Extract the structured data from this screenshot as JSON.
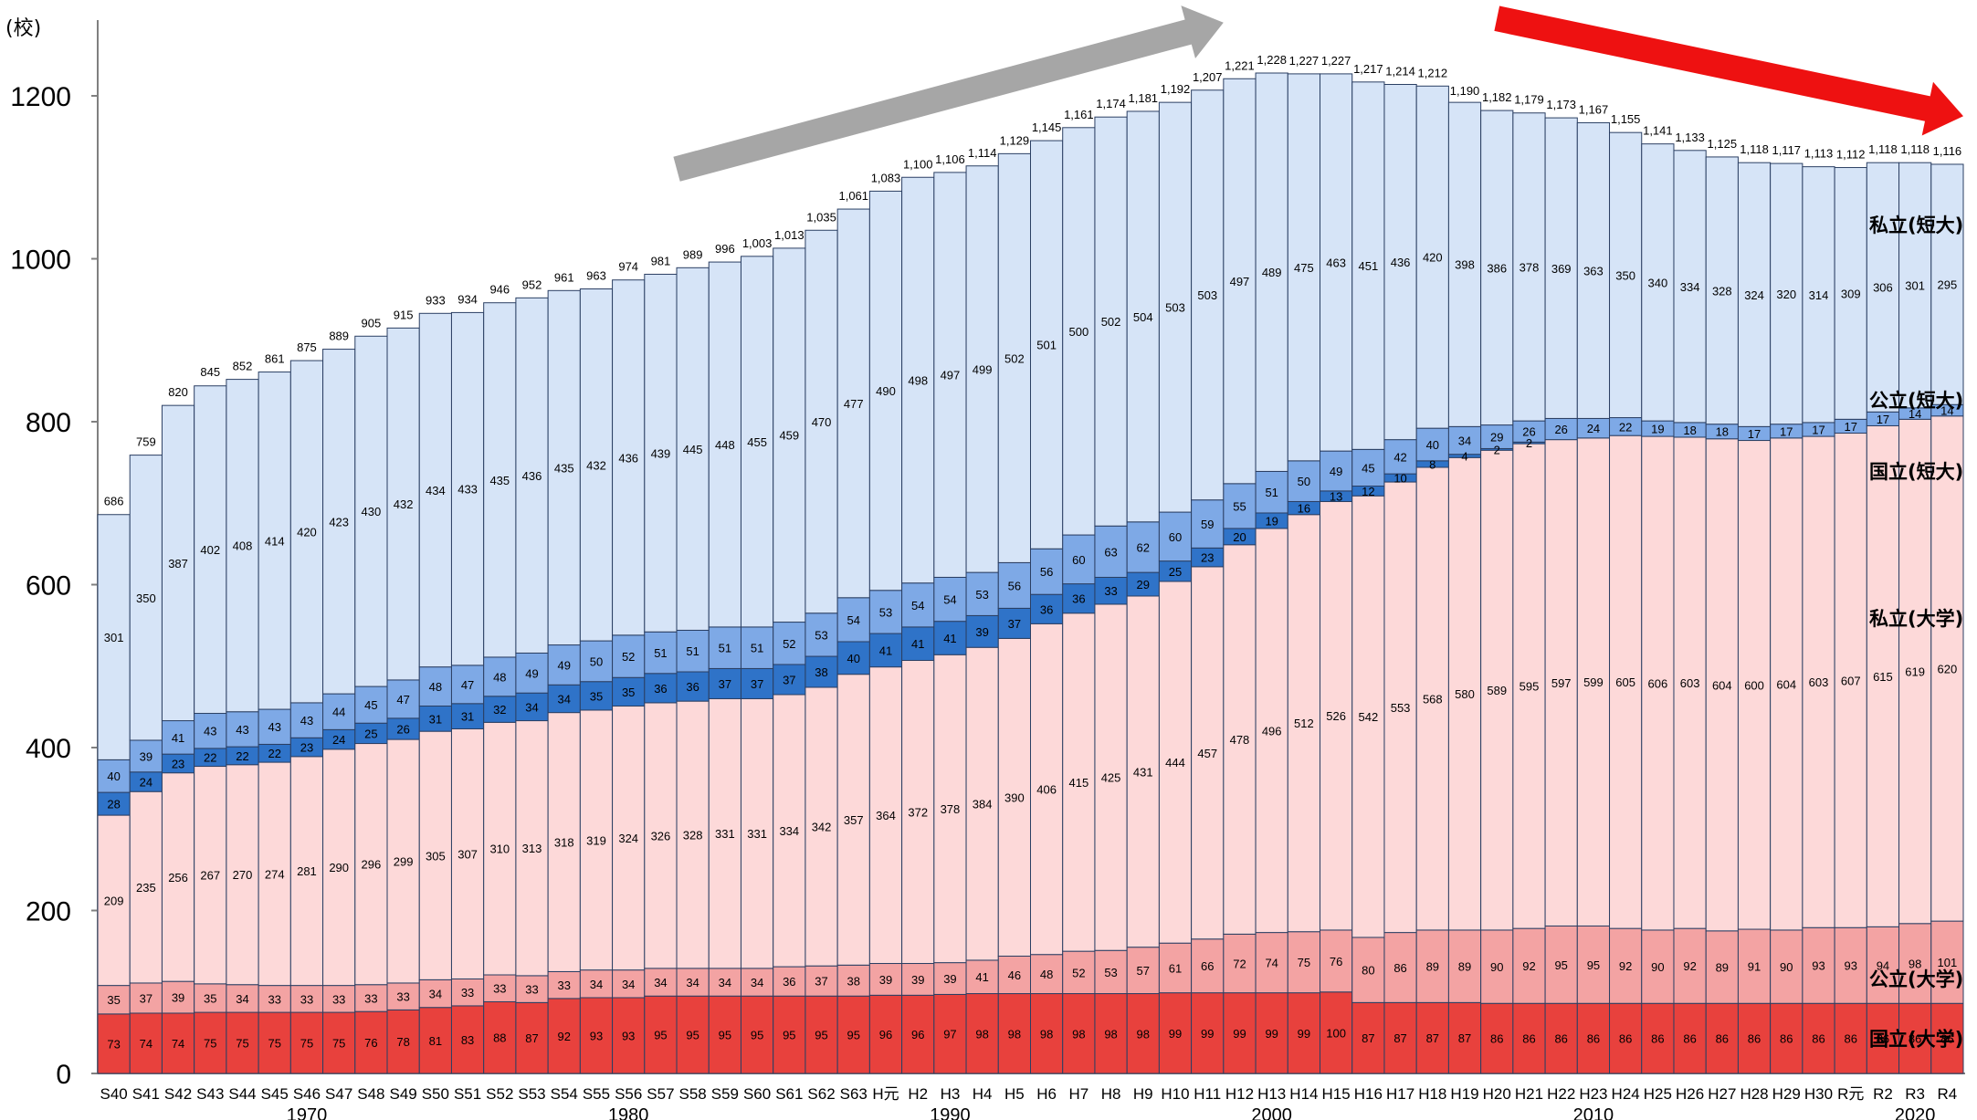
{
  "chart_data": {
    "type": "bar",
    "stacked": true,
    "unit_label": "(校)",
    "ylim": [
      0,
      1280
    ],
    "y_ticks": [
      0,
      200,
      400,
      600,
      800,
      1000,
      1200
    ],
    "categories": [
      "S40",
      "S41",
      "S42",
      "S43",
      "S44",
      "S45",
      "S46",
      "S47",
      "S48",
      "S49",
      "S50",
      "S51",
      "S52",
      "S53",
      "S54",
      "S55",
      "S56",
      "S57",
      "S58",
      "S59",
      "S60",
      "S61",
      "S62",
      "S63",
      "H元",
      "H2",
      "H3",
      "H4",
      "H5",
      "H6",
      "H7",
      "H8",
      "H9",
      "H10",
      "H11",
      "H12",
      "H13",
      "H14",
      "H15",
      "H16",
      "H17",
      "H18",
      "H19",
      "H20",
      "H21",
      "H22",
      "H23",
      "H24",
      "H25",
      "H26",
      "H27",
      "H28",
      "H29",
      "H30",
      "R元",
      "R2",
      "R3",
      "R4"
    ],
    "decade_labels": [
      {
        "label": "1970",
        "index": 6
      },
      {
        "label": "1980",
        "index": 16
      },
      {
        "label": "1990",
        "index": 26
      },
      {
        "label": "2000",
        "index": 36
      },
      {
        "label": "2010",
        "index": 46
      },
      {
        "label": "2020",
        "index": 56
      }
    ],
    "totals": [
      686,
      759,
      820,
      845,
      852,
      861,
      875,
      889,
      905,
      915,
      933,
      934,
      946,
      952,
      961,
      963,
      974,
      981,
      989,
      996,
      1003,
      1013,
      1035,
      1061,
      1083,
      1100,
      1106,
      1114,
      1129,
      1145,
      1161,
      1174,
      1181,
      1192,
      1207,
      1221,
      1228,
      1227,
      1227,
      1217,
      1214,
      1212,
      1190,
      1182,
      1179,
      1173,
      1167,
      1155,
      1141,
      1133,
      1125,
      1118,
      1117,
      1113,
      1112,
      1118,
      1118,
      1116
    ],
    "series": [
      {
        "name": "国立(大学)",
        "color": "#e8413d",
        "values": [
          73,
          74,
          74,
          75,
          75,
          75,
          75,
          75,
          76,
          78,
          81,
          83,
          88,
          87,
          92,
          93,
          93,
          95,
          95,
          95,
          95,
          95,
          95,
          95,
          96,
          96,
          97,
          98,
          98,
          98,
          98,
          98,
          98,
          99,
          99,
          99,
          99,
          99,
          100,
          87,
          87,
          87,
          87,
          86,
          86,
          86,
          86,
          86,
          86,
          86,
          86,
          86,
          86,
          86,
          86,
          86,
          86,
          86
        ]
      },
      {
        "name": "公立(大学)",
        "color": "#f3a3a3",
        "values": [
          35,
          37,
          39,
          35,
          34,
          33,
          33,
          33,
          33,
          33,
          34,
          33,
          33,
          33,
          33,
          34,
          34,
          34,
          34,
          34,
          34,
          36,
          37,
          38,
          39,
          39,
          39,
          41,
          46,
          48,
          52,
          53,
          57,
          61,
          66,
          72,
          74,
          75,
          76,
          80,
          86,
          89,
          89,
          90,
          92,
          95,
          95,
          92,
          90,
          92,
          89,
          91,
          90,
          93,
          93,
          94,
          98,
          101
        ]
      },
      {
        "name": "私立(大学)",
        "color": "#fdd9d9",
        "values": [
          209,
          235,
          256,
          267,
          270,
          274,
          281,
          290,
          296,
          299,
          305,
          307,
          310,
          313,
          318,
          319,
          324,
          326,
          328,
          331,
          331,
          334,
          342,
          357,
          364,
          372,
          378,
          384,
          390,
          406,
          415,
          425,
          431,
          444,
          457,
          478,
          496,
          512,
          526,
          542,
          553,
          568,
          580,
          589,
          595,
          597,
          599,
          605,
          606,
          603,
          604,
          600,
          604,
          603,
          607,
          615,
          619,
          620
        ]
      },
      {
        "name": "国立(短大)",
        "color": "#2f73c8",
        "values": [
          28,
          24,
          23,
          22,
          22,
          22,
          23,
          24,
          25,
          26,
          31,
          31,
          32,
          34,
          34,
          35,
          35,
          36,
          36,
          37,
          37,
          37,
          38,
          40,
          41,
          41,
          41,
          39,
          37,
          36,
          36,
          33,
          29,
          25,
          23,
          20,
          19,
          16,
          13,
          12,
          10,
          8,
          4,
          2,
          2,
          0,
          0,
          0,
          0,
          0,
          0,
          0,
          0,
          0,
          0,
          0,
          0,
          0
        ]
      },
      {
        "name": "公立(短大)",
        "color": "#7ea9e6",
        "values": [
          40,
          39,
          41,
          43,
          43,
          43,
          43,
          44,
          45,
          47,
          48,
          47,
          48,
          49,
          49,
          50,
          52,
          51,
          51,
          51,
          51,
          52,
          53,
          54,
          53,
          54,
          54,
          53,
          56,
          56,
          60,
          63,
          62,
          60,
          59,
          55,
          51,
          50,
          49,
          45,
          42,
          40,
          34,
          29,
          26,
          26,
          24,
          22,
          19,
          18,
          18,
          17,
          17,
          17,
          17,
          17,
          14,
          14
        ]
      },
      {
        "name": "私立(短大)",
        "color": "#d6e4f7",
        "values": [
          301,
          350,
          387,
          402,
          408,
          414,
          420,
          423,
          430,
          432,
          434,
          433,
          435,
          436,
          435,
          432,
          436,
          439,
          445,
          448,
          455,
          459,
          470,
          477,
          490,
          498,
          497,
          499,
          502,
          501,
          500,
          502,
          504,
          503,
          503,
          497,
          489,
          475,
          463,
          451,
          436,
          420,
          398,
          386,
          378,
          369,
          363,
          350,
          340,
          334,
          328,
          324,
          320,
          314,
          309,
          306,
          301,
          295
        ]
      }
    ],
    "series_labels": [
      {
        "text": "私立(短大)",
        "series": 5
      },
      {
        "text": "公立(短大)",
        "series": 4
      },
      {
        "text": "国立(短大)",
        "series": 3
      },
      {
        "text": "私立(大学)",
        "series": 2
      },
      {
        "text": "公立(大学)",
        "series": 1
      },
      {
        "text": "国立(大学)",
        "series": 0
      }
    ],
    "arrows": [
      {
        "color": "#a6a6a6",
        "from": [
          17.5,
          1110
        ],
        "to": [
          34.5,
          1290
        ]
      },
      {
        "color": "#ee1111",
        "from": [
          43,
          1295
        ],
        "to": [
          57.5,
          1175
        ]
      }
    ]
  }
}
